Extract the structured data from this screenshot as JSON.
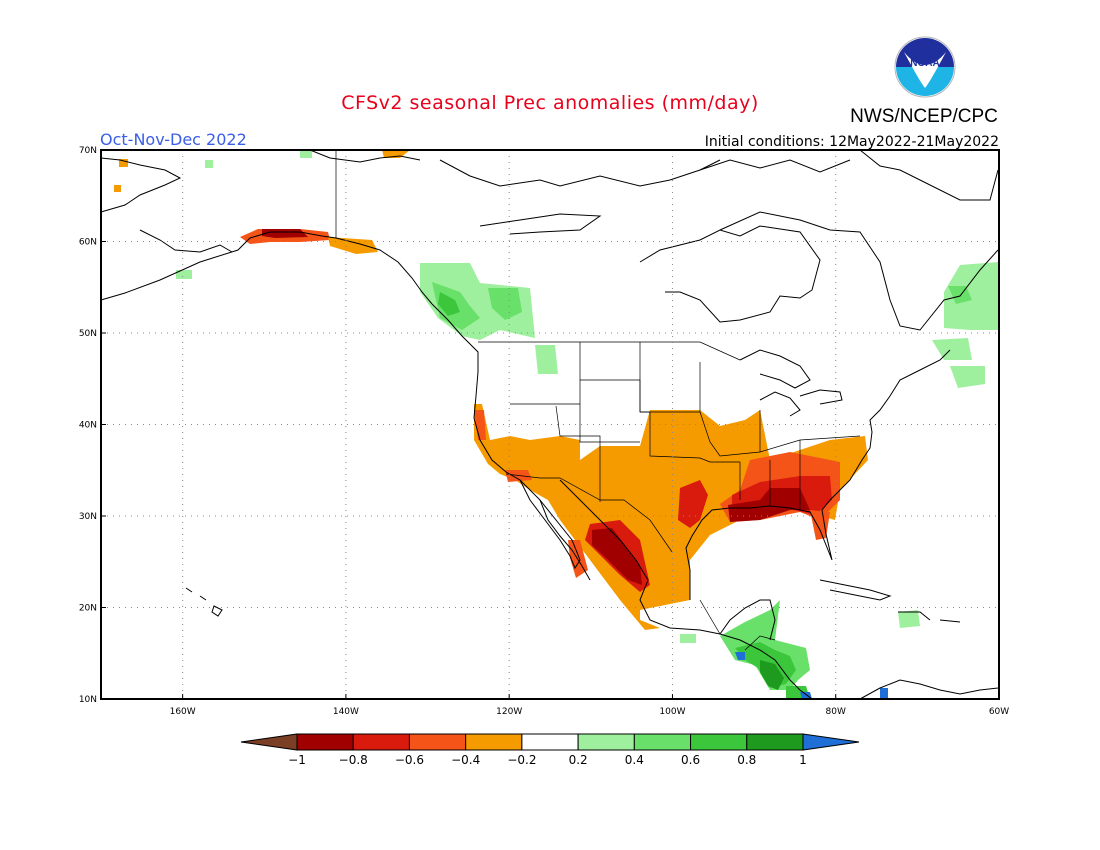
{
  "header": {
    "title": "CFSv2 seasonal Prec anomalies (mm/day)",
    "season": "Oct-Nov-Dec 2022",
    "initial_conditions": "Initial conditions: 12May2022-21May2022",
    "agency": "NWS/NCEP/CPC",
    "logo_text": "NOAA"
  },
  "colors": {
    "title": "#e8001c",
    "season": "#3a5ee8",
    "neg_1": "#7a3f24",
    "neg_08": "#a10000",
    "neg_06": "#d91b0e",
    "neg_04": "#f55418",
    "neg_02": "#f59b00",
    "pos_02": "#9ef09e",
    "pos_04": "#69e069",
    "pos_06": "#3cc63c",
    "pos_08": "#1e9a1e",
    "pos_1": "#1f6fd6"
  },
  "map": {
    "lat_labels": [
      "70N",
      "60N",
      "50N",
      "40N",
      "30N",
      "20N",
      "10N"
    ],
    "lon_labels": [
      "160W",
      "140W",
      "120W",
      "100W",
      "80W",
      "60W"
    ],
    "lat_values": [
      70,
      60,
      50,
      40,
      30,
      20,
      10
    ],
    "lon_values": [
      -160,
      -140,
      -120,
      -100,
      -80,
      -60
    ],
    "extent": {
      "lon_min": -170,
      "lon_max": -60,
      "lat_min": 10,
      "lat_max": 70
    }
  },
  "colorbar": {
    "labels": [
      "-1",
      "-0.8",
      "-0.6",
      "-0.4",
      "-0.2",
      "0.2",
      "0.4",
      "0.6",
      "0.8",
      "1"
    ],
    "bins": [
      {
        "range": "< -1",
        "color_key": "neg_1"
      },
      {
        "range": "-1 to -0.8",
        "color_key": "neg_08"
      },
      {
        "range": "-0.8 to -0.6",
        "color_key": "neg_06"
      },
      {
        "range": "-0.6 to -0.4",
        "color_key": "neg_04"
      },
      {
        "range": "-0.4 to -0.2",
        "color_key": "neg_02"
      },
      {
        "range": "-0.2 to 0.2",
        "color_key": "white"
      },
      {
        "range": "0.2 to 0.4",
        "color_key": "pos_02"
      },
      {
        "range": "0.4 to 0.6",
        "color_key": "pos_04"
      },
      {
        "range": "0.6 to 0.8",
        "color_key": "pos_06"
      },
      {
        "range": "0.8 to 1",
        "color_key": "pos_08"
      },
      {
        "range": "> 1",
        "color_key": "pos_1"
      }
    ]
  },
  "anomaly_regions": [
    {
      "name": "southern-plains-dry",
      "level": "neg_02"
    },
    {
      "name": "southwest-dry",
      "level": "neg_02"
    },
    {
      "name": "gulf-coast-dry",
      "level": "neg_06"
    },
    {
      "name": "southeast-dry",
      "level": "neg_08"
    },
    {
      "name": "northwest-mexico-dry",
      "level": "neg_08"
    },
    {
      "name": "southern-alaska-dry",
      "level": "neg_08"
    },
    {
      "name": "british-columbia-wet",
      "level": "pos_04"
    },
    {
      "name": "central-america-wet",
      "level": "pos_06"
    },
    {
      "name": "newfoundland-wet",
      "level": "pos_02"
    }
  ]
}
